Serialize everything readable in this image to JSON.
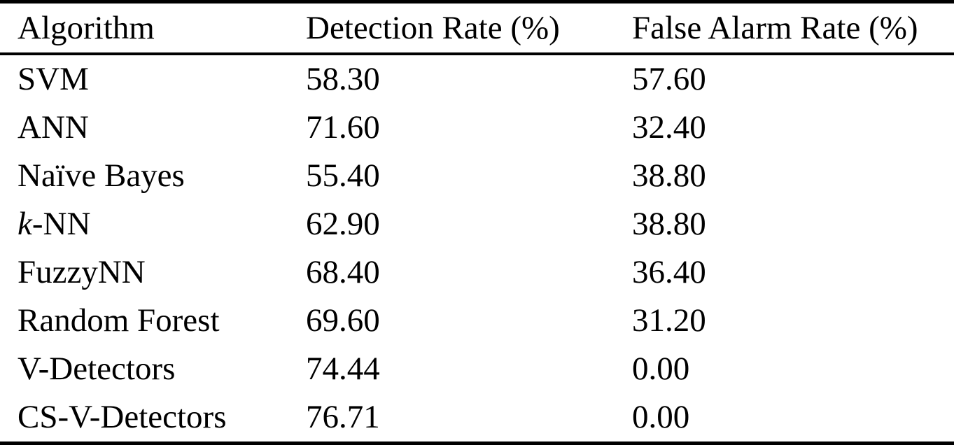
{
  "colors": {
    "background": "#ffffff",
    "text": "#000000",
    "rule": "#000000"
  },
  "table": {
    "columns": [
      {
        "label": "Algorithm"
      },
      {
        "label": "Detection Rate (%)"
      },
      {
        "label": "False Alarm Rate (%)"
      }
    ],
    "rows": [
      {
        "algorithm_italic": "",
        "algorithm": "SVM",
        "detection_rate": "58.30",
        "false_alarm_rate": "57.60"
      },
      {
        "algorithm_italic": "",
        "algorithm": "ANN",
        "detection_rate": "71.60",
        "false_alarm_rate": "32.40"
      },
      {
        "algorithm_italic": "",
        "algorithm": "Naïve Bayes",
        "detection_rate": "55.40",
        "false_alarm_rate": "38.80"
      },
      {
        "algorithm_italic": "k",
        "algorithm": "-NN",
        "detection_rate": "62.90",
        "false_alarm_rate": "38.80"
      },
      {
        "algorithm_italic": "",
        "algorithm": "FuzzyNN",
        "detection_rate": "68.40",
        "false_alarm_rate": "36.40"
      },
      {
        "algorithm_italic": "",
        "algorithm": "Random Forest",
        "detection_rate": "69.60",
        "false_alarm_rate": "31.20"
      },
      {
        "algorithm_italic": "",
        "algorithm": "V-Detectors",
        "detection_rate": "74.44",
        "false_alarm_rate": "0.00"
      },
      {
        "algorithm_italic": "",
        "algorithm": "CS-V-Detectors",
        "detection_rate": "76.71",
        "false_alarm_rate": "0.00"
      }
    ]
  }
}
